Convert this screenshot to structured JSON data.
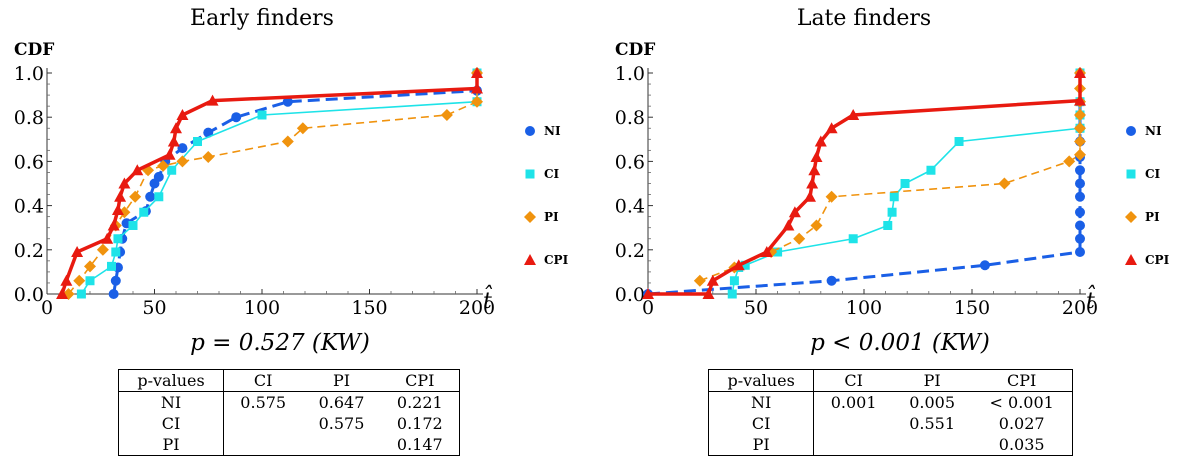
{
  "chart_data": [
    {
      "type": "line",
      "title": "Early finders",
      "ylabel": "CDF",
      "xlabel": "t̂",
      "xlim": [
        0,
        200
      ],
      "ylim": [
        0,
        1
      ],
      "xticks": [
        0,
        50,
        100,
        150,
        200
      ],
      "xtick_labels": [
        "0",
        "50",
        "100",
        "150",
        "200"
      ],
      "yticks": [
        0,
        0.2,
        0.4,
        0.6,
        0.8,
        1.0
      ],
      "ytick_labels": [
        "0.0",
        "0.2",
        "0.4",
        "0.6",
        "0.8",
        "1.0"
      ],
      "legend_position": "right",
      "series": [
        {
          "name": "NI",
          "color": "#1a5fe6",
          "marker": "circle",
          "dash": "dashed",
          "x": [
            31,
            32,
            33,
            34,
            35,
            37,
            46,
            48,
            50,
            52,
            55,
            63,
            75,
            88,
            112,
            200,
            200
          ],
          "y": [
            0.0,
            0.06,
            0.12,
            0.19,
            0.25,
            0.32,
            0.375,
            0.44,
            0.5,
            0.53,
            0.6,
            0.66,
            0.73,
            0.8,
            0.87,
            0.92,
            1.0
          ]
        },
        {
          "name": "CI",
          "color": "#1ee3e8",
          "marker": "square",
          "dash": "solid",
          "x": [
            16,
            20,
            30,
            32,
            33,
            40,
            45,
            52,
            58,
            70,
            100,
            200,
            200
          ],
          "y": [
            0.0,
            0.06,
            0.125,
            0.19,
            0.25,
            0.31,
            0.37,
            0.44,
            0.56,
            0.69,
            0.81,
            0.87,
            1.0
          ]
        },
        {
          "name": "PI",
          "color": "#f0930e",
          "marker": "diamond",
          "dash": "dashed",
          "x": [
            10,
            15,
            20,
            26,
            32,
            36,
            41,
            47,
            54,
            63,
            75,
            112,
            119,
            186,
            200,
            200
          ],
          "y": [
            0.0,
            0.06,
            0.125,
            0.2,
            0.31,
            0.37,
            0.44,
            0.56,
            0.58,
            0.6,
            0.62,
            0.69,
            0.75,
            0.81,
            0.87,
            1.0
          ]
        },
        {
          "name": "CPI",
          "color": "#e81a10",
          "marker": "triangle",
          "dash": "solid",
          "x": [
            7,
            9,
            14,
            28,
            31,
            33,
            34,
            36,
            42,
            57,
            59,
            60,
            63,
            77,
            200,
            200
          ],
          "y": [
            0.0,
            0.06,
            0.19,
            0.25,
            0.31,
            0.38,
            0.44,
            0.5,
            0.56,
            0.63,
            0.69,
            0.75,
            0.81,
            0.875,
            0.93,
            1.0
          ]
        }
      ]
    },
    {
      "type": "line",
      "title": "Late finders",
      "ylabel": "CDF",
      "xlabel": "t̂",
      "xlim": [
        0,
        200
      ],
      "ylim": [
        0,
        1
      ],
      "xticks": [
        0,
        50,
        100,
        150,
        200
      ],
      "xtick_labels": [
        "0",
        "50",
        "100",
        "150",
        "200"
      ],
      "yticks": [
        0,
        0.2,
        0.4,
        0.6,
        0.8,
        1.0
      ],
      "ytick_labels": [
        "0.0",
        "0.2",
        "0.4",
        "0.6",
        "0.8",
        "1.0"
      ],
      "legend_position": "right",
      "series": [
        {
          "name": "NI",
          "color": "#1a5fe6",
          "marker": "circle",
          "dash": "dashed",
          "x": [
            0,
            85,
            156,
            200,
            200,
            200,
            200,
            200,
            200,
            200,
            200,
            200,
            200,
            200,
            200,
            200
          ],
          "y": [
            0.0,
            0.06,
            0.13,
            0.19,
            0.25,
            0.31,
            0.37,
            0.44,
            0.5,
            0.56,
            0.62,
            0.69,
            0.75,
            0.81,
            0.87,
            1.0
          ]
        },
        {
          "name": "CI",
          "color": "#1ee3e8",
          "marker": "square",
          "dash": "solid",
          "x": [
            39,
            40,
            42,
            45,
            60,
            95,
            111,
            113,
            114,
            119,
            131,
            144,
            200,
            200,
            200,
            200
          ],
          "y": [
            0.0,
            0.06,
            0.12,
            0.13,
            0.19,
            0.25,
            0.31,
            0.37,
            0.44,
            0.5,
            0.56,
            0.69,
            0.75,
            0.81,
            0.87,
            1.0
          ]
        },
        {
          "name": "PI",
          "color": "#f0930e",
          "marker": "diamond",
          "dash": "dashed",
          "x": [
            24,
            40,
            57,
            70,
            78,
            85,
            165,
            195,
            200,
            200,
            200,
            200,
            200,
            200,
            200
          ],
          "y": [
            0.06,
            0.12,
            0.19,
            0.25,
            0.31,
            0.44,
            0.5,
            0.6,
            0.63,
            0.69,
            0.75,
            0.81,
            0.87,
            0.93,
            1.0
          ]
        },
        {
          "name": "CPI",
          "color": "#e81a10",
          "marker": "triangle",
          "dash": "solid",
          "x": [
            0,
            28,
            30,
            42,
            55,
            65,
            68,
            75,
            76,
            77,
            78,
            80,
            85,
            95,
            200,
            200
          ],
          "y": [
            0.0,
            0.0,
            0.06,
            0.13,
            0.19,
            0.31,
            0.37,
            0.44,
            0.5,
            0.56,
            0.62,
            0.69,
            0.75,
            0.81,
            0.875,
            1.0
          ]
        }
      ]
    }
  ],
  "panels": [
    {
      "pvalue_text": "p = 0.527 (KW)",
      "table": {
        "header": [
          "p-values",
          "CI",
          "PI",
          "CPI"
        ],
        "rows": [
          [
            "NI",
            "0.575",
            "0.647",
            "0.221"
          ],
          [
            "CI",
            "",
            "0.575",
            "0.172"
          ],
          [
            "PI",
            "",
            "",
            "0.147"
          ]
        ]
      }
    },
    {
      "pvalue_text": "p < 0.001 (KW)",
      "table": {
        "header": [
          "p-values",
          "CI",
          "PI",
          "CPI"
        ],
        "rows": [
          [
            "NI",
            "0.001",
            "0.005",
            "< 0.001"
          ],
          [
            "CI",
            "",
            "0.551",
            "0.027"
          ],
          [
            "PI",
            "",
            "",
            "0.035"
          ]
        ]
      }
    }
  ]
}
